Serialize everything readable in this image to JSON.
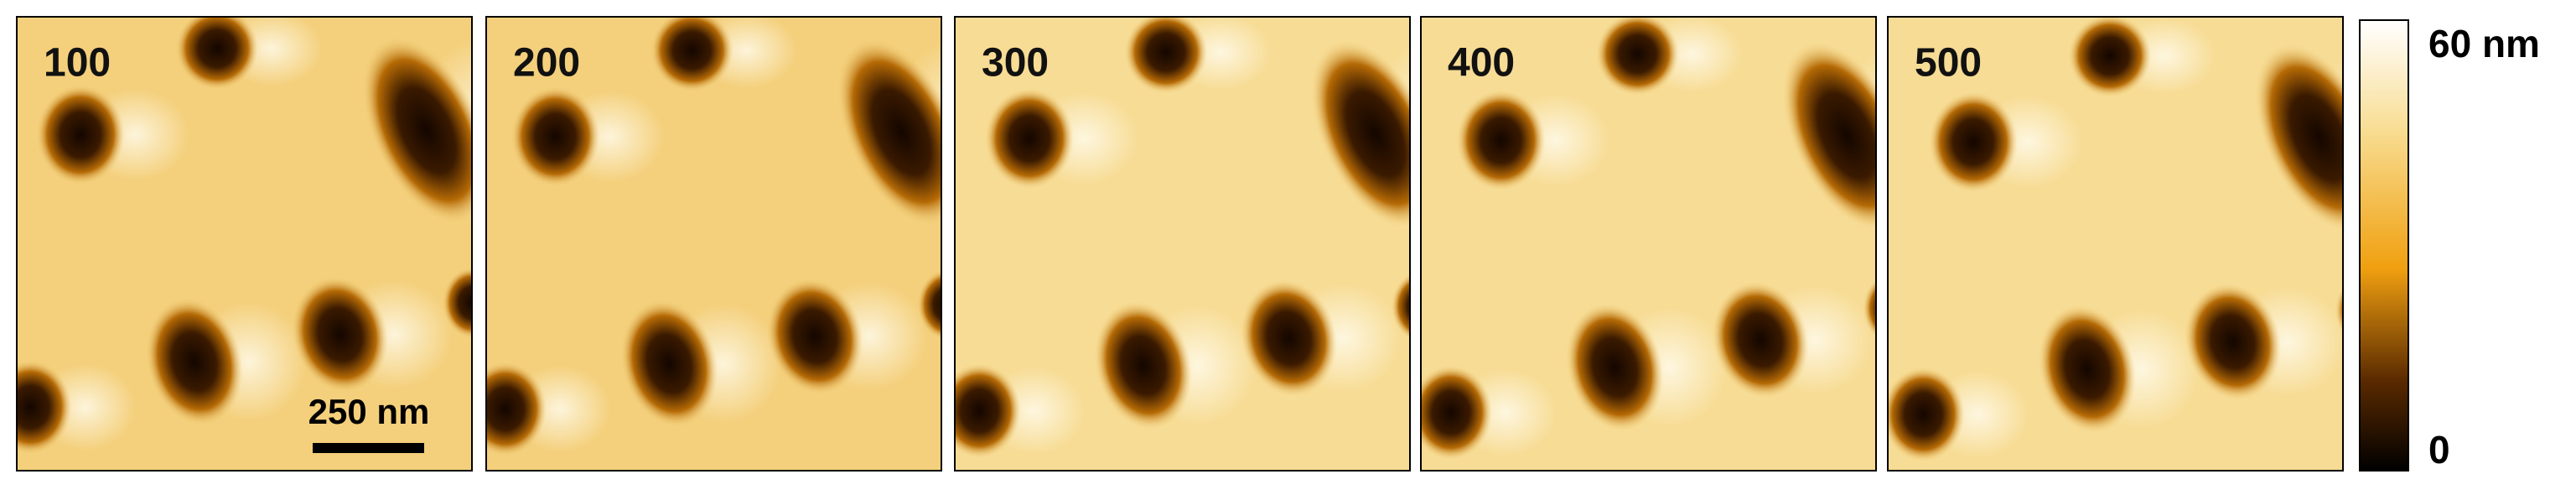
{
  "panels": [
    {
      "label": "100"
    },
    {
      "label": "200"
    },
    {
      "label": "300"
    },
    {
      "label": "400"
    },
    {
      "label": "500"
    }
  ],
  "scale_bar": {
    "label": "250 nm"
  },
  "colorbar": {
    "max_label": "60 nm",
    "min_label": "0"
  }
}
